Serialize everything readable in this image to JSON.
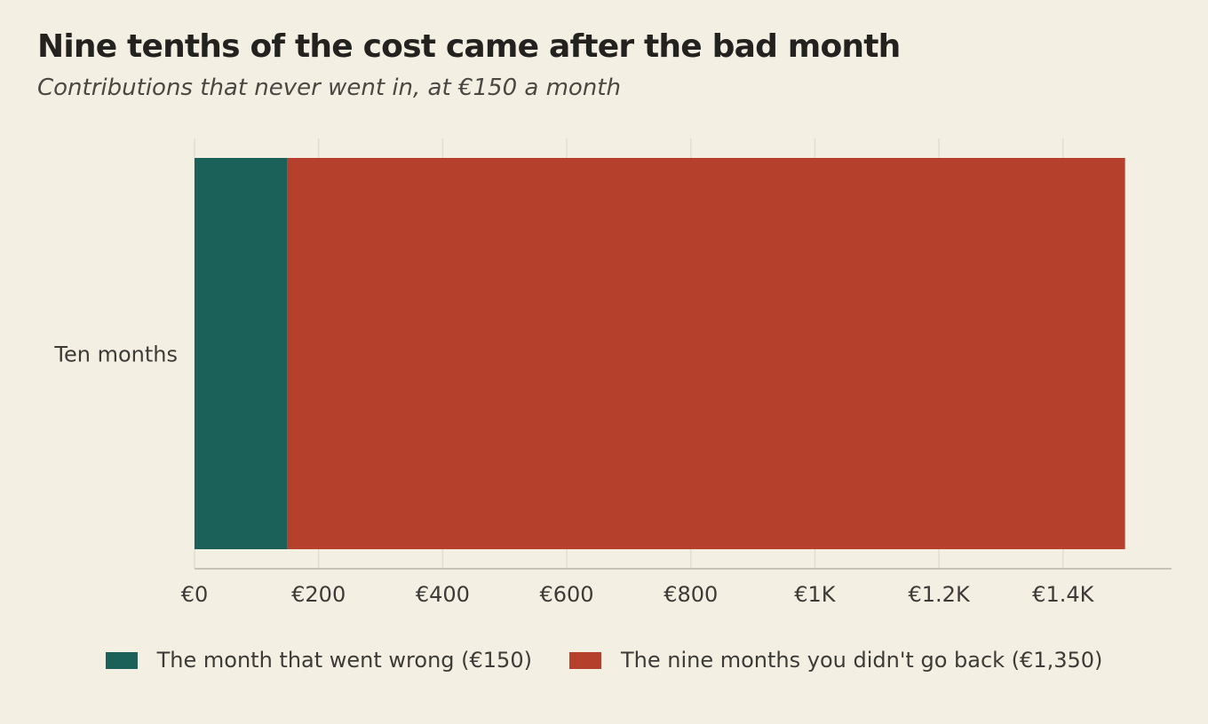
{
  "title": "Nine tenths of the cost came after the bad month",
  "subtitle": "Contributions that never went in, at €150 a month",
  "chart_data": {
    "type": "bar",
    "orientation": "horizontal",
    "stacked": true,
    "categories": [
      "Ten months"
    ],
    "series": [
      {
        "name": "The month that went wrong (€150)",
        "values": [
          150
        ],
        "color": "#1b6159"
      },
      {
        "name": "The nine months you didn't go back (€1,350)",
        "values": [
          1350
        ],
        "color": "#b5412c"
      }
    ],
    "xlim": [
      0,
      1575
    ],
    "x_ticks": [
      0,
      200,
      400,
      600,
      800,
      1000,
      1200,
      1400
    ],
    "x_tick_labels": [
      "€0",
      "€200",
      "€400",
      "€600",
      "€800",
      "€1K",
      "€1.2K",
      "€1.4K"
    ],
    "xlabel": "",
    "ylabel": "",
    "grid": true,
    "legend_position": "bottom"
  },
  "colors": {
    "background": "#f4efe3",
    "grid": "#e2ddd0",
    "axis": "#c8c3b6",
    "text": "#3d3b37"
  }
}
